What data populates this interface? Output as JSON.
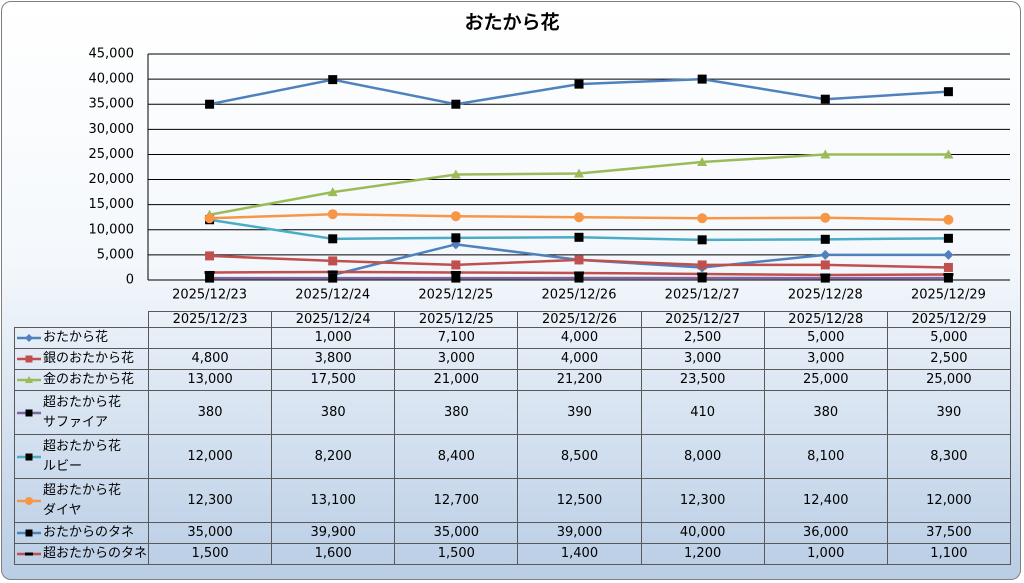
{
  "chart_data": {
    "type": "line",
    "title": "おたから花",
    "categories": [
      "2025/12/23",
      "2025/12/24",
      "2025/12/25",
      "2025/12/26",
      "2025/12/27",
      "2025/12/28",
      "2025/12/29"
    ],
    "ylim": [
      0,
      45000
    ],
    "yticks": [
      0,
      {
        "value": 5000,
        "label": "5,000"
      },
      {
        "value": 10000,
        "label": "10,000"
      },
      {
        "value": 15000,
        "label": "15,000"
      },
      {
        "value": 20000,
        "label": "20,000"
      },
      {
        "value": 25000,
        "label": "25,000"
      },
      {
        "value": 30000,
        "label": "30,000"
      },
      {
        "value": 35000,
        "label": "35,000"
      },
      {
        "value": 40000,
        "label": "40,000"
      },
      {
        "value": 45000,
        "label": "45,000"
      }
    ],
    "grid": true,
    "series": [
      {
        "name": "おたから花",
        "color": "#4f81bd",
        "marker": "diamond",
        "marker_color": "#4f81bd",
        "values": [
          null,
          1000,
          7100,
          4000,
          2500,
          5000,
          5000
        ],
        "value_labels": [
          null,
          "1,000",
          "7,100",
          "4,000",
          "2,500",
          "5,000",
          "5,000"
        ]
      },
      {
        "name": "銀のおたから花",
        "color": "#c0504d",
        "marker": "square",
        "marker_color": "#c0504d",
        "values": [
          4800,
          3800,
          3000,
          4000,
          3000,
          3000,
          2500
        ],
        "value_labels": [
          "4,800",
          "3,800",
          "3,000",
          "4,000",
          "3,000",
          "3,000",
          "2,500"
        ]
      },
      {
        "name": "金のおたから花",
        "color": "#9bbb59",
        "marker": "triangle",
        "marker_color": "#9bbb59",
        "values": [
          13000,
          17500,
          21000,
          21200,
          23500,
          25000,
          25000
        ],
        "value_labels": [
          "13,000",
          "17,500",
          "21,000",
          "21,200",
          "23,500",
          "25,000",
          "25,000"
        ]
      },
      {
        "name": "超おたから花\nサファイア",
        "color": "#8064a2",
        "marker": "square",
        "marker_color": "#000000",
        "values": [
          380,
          380,
          380,
          390,
          410,
          380,
          390
        ]
      },
      {
        "name": "超おたから花\nルビー",
        "color": "#4bacc6",
        "marker": "square",
        "marker_color": "#000000",
        "values": [
          12000,
          8200,
          8400,
          8500,
          8000,
          8100,
          8300
        ],
        "value_labels": [
          "12,000",
          "8,200",
          "8,400",
          "8,500",
          "8,000",
          "8,100",
          "8,300"
        ]
      },
      {
        "name": "超おたから花\nダイヤ",
        "color": "#f79646",
        "marker": "circle",
        "marker_color": "#f79646",
        "values": [
          12300,
          13100,
          12700,
          12500,
          12300,
          12400,
          12000
        ],
        "value_labels": [
          "12,300",
          "13,100",
          "12,700",
          "12,500",
          "12,300",
          "12,400",
          "12,000"
        ]
      },
      {
        "name": "おたからのタネ",
        "color": "#4f81bd",
        "marker": "square",
        "marker_color": "#000000",
        "values": [
          35000,
          39900,
          35000,
          39000,
          40000,
          36000,
          37500
        ],
        "value_labels": [
          "35,000",
          "39,900",
          "35,000",
          "39,000",
          "40,000",
          "36,000",
          "37,500"
        ]
      },
      {
        "name": "超おたからのタネ",
        "color": "#c0504d",
        "marker": "dash",
        "marker_color": "#000000",
        "values": [
          1500,
          1600,
          1500,
          1400,
          1200,
          1000,
          1100
        ],
        "value_labels": [
          "1,500",
          "1,600",
          "1,500",
          "1,400",
          "1,200",
          "1,000",
          "1,100"
        ]
      }
    ]
  }
}
